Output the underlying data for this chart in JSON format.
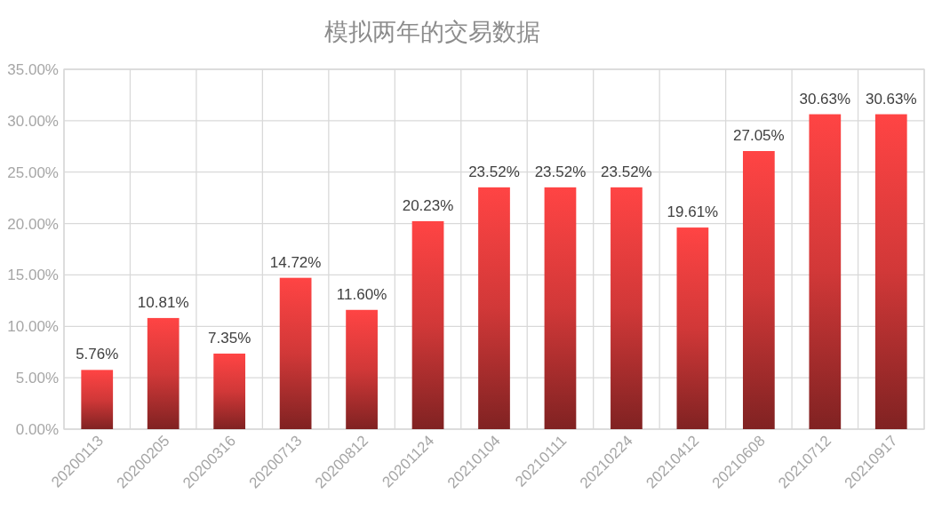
{
  "chart_data": {
    "type": "bar",
    "title": "模拟两年的交易数据",
    "categories": [
      "20200113",
      "20200205",
      "20200316",
      "20200713",
      "20200812",
      "20201124",
      "20210104",
      "20210111",
      "20210224",
      "20210412",
      "20210608",
      "20210712",
      "20210917"
    ],
    "values": [
      5.76,
      10.81,
      7.35,
      14.72,
      11.6,
      20.23,
      23.52,
      23.52,
      23.52,
      19.61,
      27.05,
      30.63,
      30.63
    ],
    "value_labels": [
      "5.76%",
      "10.81%",
      "7.35%",
      "14.72%",
      "11.60%",
      "20.23%",
      "23.52%",
      "23.52%",
      "23.52%",
      "19.61%",
      "27.05%",
      "30.63%",
      "30.63%"
    ],
    "color": "#ff4444",
    "ylim": [
      0,
      35
    ],
    "yticks": [
      {
        "value": 0,
        "label": "0.00%"
      },
      {
        "value": 5,
        "label": "5.00%"
      },
      {
        "value": 10,
        "label": "10.00%"
      },
      {
        "value": 15,
        "label": "15.00%"
      },
      {
        "value": 20,
        "label": "20.00%"
      },
      {
        "value": 25,
        "label": "25.00%"
      },
      {
        "value": 30,
        "label": "30.00%"
      },
      {
        "value": 35,
        "label": "35.00%"
      }
    ],
    "grid": true
  }
}
